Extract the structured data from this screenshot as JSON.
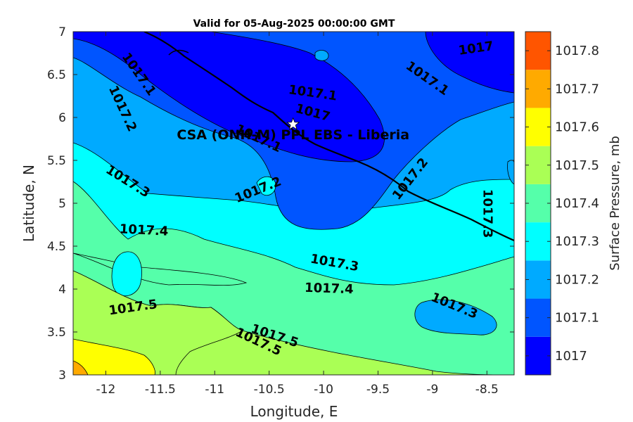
{
  "chart_data": {
    "type": "heatmap",
    "subtype": "filled-contour map",
    "title": "Valid for 05-Aug-2025 00:00:00 GMT",
    "xlabel": "Longitude, E",
    "ylabel": "Latitude, N",
    "xlim": [
      -12.3,
      -8.25
    ],
    "ylim": [
      3,
      7
    ],
    "xticks": [
      -12,
      -11.5,
      -11,
      -10.5,
      -10,
      -9.5,
      -9,
      -8.5
    ],
    "xtick_labels": [
      "-12",
      "-11.5",
      "-11",
      "-10.5",
      "-10",
      "-9.5",
      "-9",
      "-8.5"
    ],
    "yticks": [
      3,
      3.5,
      4,
      4.5,
      5,
      5.5,
      6,
      6.5,
      7
    ],
    "ytick_labels": [
      "3",
      "3.5",
      "4",
      "4.5",
      "5",
      "5.5",
      "6",
      "6.5",
      "7"
    ],
    "colorbar": {
      "label": "Surface Pressure, mb",
      "levels": [
        1017,
        1017.1,
        1017.2,
        1017.3,
        1017.4,
        1017.5,
        1017.6,
        1017.7,
        1017.8
      ],
      "tick_labels": [
        "1017",
        "1017.1",
        "1017.2",
        "1017.3",
        "1017.4",
        "1017.5",
        "1017.6",
        "1017.7",
        "1017.8"
      ],
      "colors": [
        "#0000ff",
        "#0055ff",
        "#00aaff",
        "#00ffff",
        "#55ffaa",
        "#aaff55",
        "#ffff00",
        "#ffaa00",
        "#ff5500"
      ]
    },
    "contour_labels": [
      {
        "text": "1017",
        "lon": -8.6,
        "lat": 6.8,
        "angle": -8
      },
      {
        "text": "1017.1",
        "lon": -11.7,
        "lat": 6.5,
        "angle": 55
      },
      {
        "text": "1017.1",
        "lon": -10.1,
        "lat": 6.28,
        "angle": 8
      },
      {
        "text": "1017.1",
        "lon": -9.05,
        "lat": 6.45,
        "angle": 35
      },
      {
        "text": "1017",
        "lon": -10.1,
        "lat": 6.05,
        "angle": 15
      },
      {
        "text": "1017.1",
        "lon": -10.6,
        "lat": 5.75,
        "angle": 25
      },
      {
        "text": "1017.2",
        "lon": -11.85,
        "lat": 6.1,
        "angle": 65
      },
      {
        "text": "1017.2",
        "lon": -10.6,
        "lat": 5.15,
        "angle": -22
      },
      {
        "text": "1017.2",
        "lon": -9.2,
        "lat": 5.28,
        "angle": -52
      },
      {
        "text": "1017.3",
        "lon": -11.8,
        "lat": 5.25,
        "angle": 32
      },
      {
        "text": "1017.3",
        "lon": -8.5,
        "lat": 4.88,
        "angle": 90
      },
      {
        "text": "1017.3",
        "lon": -9.9,
        "lat": 4.3,
        "angle": 10
      },
      {
        "text": "1017.3",
        "lon": -8.8,
        "lat": 3.8,
        "angle": 22
      },
      {
        "text": "1017.4",
        "lon": -11.65,
        "lat": 4.68,
        "angle": 3
      },
      {
        "text": "1017.4",
        "lon": -9.95,
        "lat": 4.0,
        "angle": 2
      },
      {
        "text": "1017.5",
        "lon": -11.75,
        "lat": 3.78,
        "angle": -8
      },
      {
        "text": "1017.5",
        "lon": -10.45,
        "lat": 3.45,
        "angle": 18
      },
      {
        "text": "1017.5",
        "lon": -10.6,
        "lat": 3.38,
        "angle": 25
      }
    ],
    "annotation": {
      "text": "CSA (ONH-M) PPL EBS  - Liberia",
      "lon": -10.28,
      "lat": 5.92,
      "marker": "white-star"
    },
    "grid": false,
    "legend": "colorbar-right"
  }
}
